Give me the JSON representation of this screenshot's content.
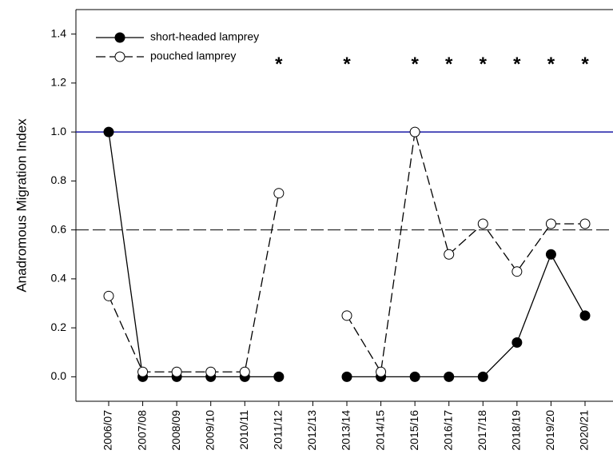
{
  "chart_data": {
    "type": "line",
    "y_label": "Anadromous Migration Index",
    "categories": [
      "2006/07",
      "2007/08",
      "2008/09",
      "2009/10",
      "2010/11",
      "2011/12",
      "2012/13",
      "2013/14",
      "2014/15",
      "2015/16",
      "2016/17",
      "2017/18",
      "2018/19",
      "2019/20",
      "2020/21"
    ],
    "series": [
      {
        "name": "short-headed lamprey",
        "color": "#000000",
        "marker_fill": "#000000",
        "dash": "solid",
        "values": [
          1.0,
          0,
          0,
          0,
          0,
          0,
          null,
          0,
          0,
          0,
          0,
          0,
          0.14,
          0.5,
          0.25
        ]
      },
      {
        "name": "pouched lamprey",
        "color": "#000000",
        "marker_fill": "#ffffff",
        "dash": "dashed",
        "values": [
          0.33,
          0.02,
          0.02,
          0.02,
          0.02,
          0.75,
          null,
          0.25,
          0.02,
          1.0,
          0.5,
          0.625,
          0.43,
          0.625,
          0.625
        ]
      }
    ],
    "ylim": [
      -0.1,
      1.5
    ],
    "yticks": [
      {
        "value": 0,
        "label": "0.0"
      },
      0.2,
      0.4,
      0.6,
      0.8,
      {
        "value": 1,
        "label": "1.0"
      },
      1.2,
      1.4
    ],
    "reference_lines": [
      {
        "value": 1.0,
        "color": "#1a1aa6",
        "dash": "solid"
      },
      {
        "value": 0.6,
        "color": "#000000",
        "dash": "dashed"
      }
    ],
    "annotation_text": "*",
    "annotation_categories": [
      5,
      7,
      9,
      10,
      11,
      12,
      13,
      14
    ],
    "legend": "upper-left"
  }
}
